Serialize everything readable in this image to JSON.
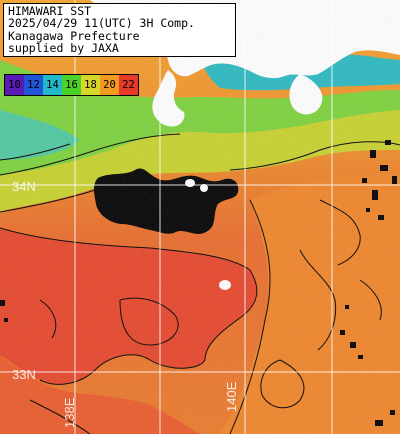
{
  "title": {
    "line1": "HIMAWARI SST",
    "line2": "2025/04/29 11(UTC) 3H Comp.",
    "line3": "Kanagawa Prefecture",
    "line4": "supplied by JAXA"
  },
  "legend": [
    {
      "label": "10",
      "color": "#5a1ab5"
    },
    {
      "label": "12",
      "color": "#1f56d8"
    },
    {
      "label": "14",
      "color": "#22b8c8"
    },
    {
      "label": "16",
      "color": "#4bd12a"
    },
    {
      "label": "18",
      "color": "#d7d62a"
    },
    {
      "label": "20",
      "color": "#f29a20"
    },
    {
      "label": "22",
      "color": "#e53a2a"
    }
  ],
  "labels": {
    "lat34": "34N",
    "lat33": "33N",
    "lon138": "138E",
    "lon140": "140E"
  },
  "colors": {
    "land": "#ffffff",
    "cloud": "#000000",
    "grid": "#ffffff"
  }
}
